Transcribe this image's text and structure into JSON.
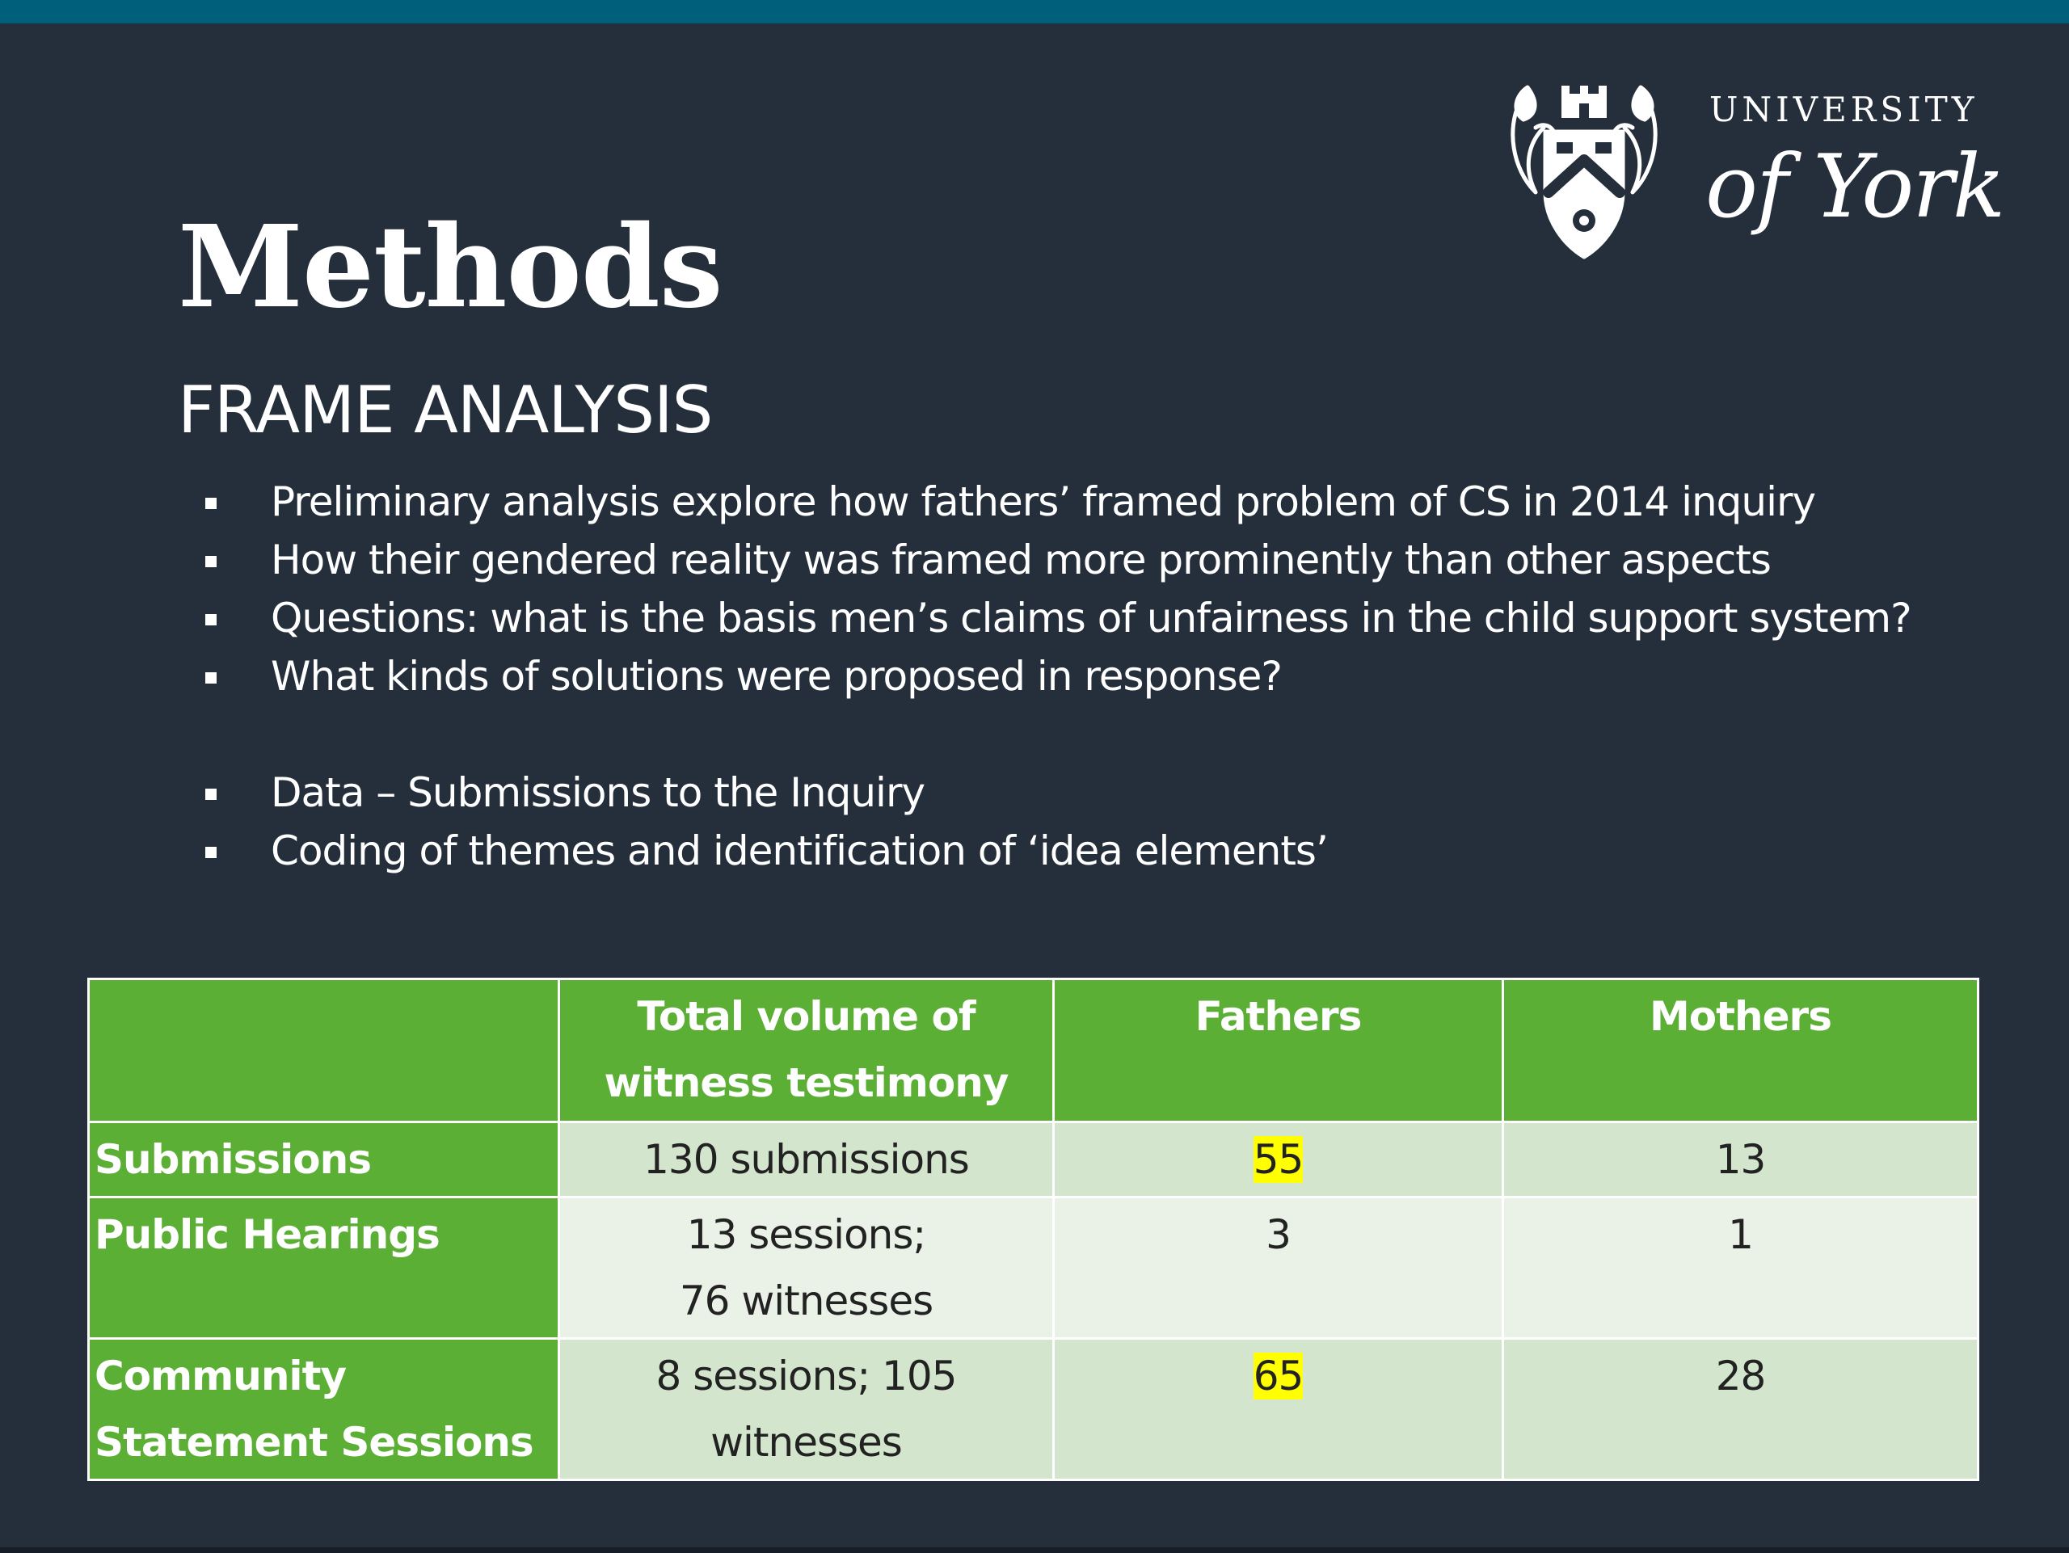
{
  "slide": {
    "title": "Methods",
    "subtitle": "FRAME ANALYSIS"
  },
  "logo": {
    "line1": "UNIVERSITY",
    "line2": "of York",
    "icon": "university-crest-icon"
  },
  "bullets": [
    "Preliminary analysis explore how fathers’ framed problem of CS in 2014 inquiry",
    "How their gendered reality was framed more prominently than other aspects",
    "Questions: what is the basis men’s claims of unfairness in the child support system?",
    "What kinds of solutions were proposed in response?",
    "Data – Submissions to the Inquiry",
    "Coding of themes and identification of ‘idea elements’"
  ],
  "table": {
    "headers": [
      "",
      "Total volume of witness testimony",
      "Fathers",
      "Mothers"
    ],
    "rows": [
      {
        "label": "Submissions",
        "total": [
          "130 submissions"
        ],
        "fathers": "55",
        "mothers": "13"
      },
      {
        "label": "Public Hearings",
        "total": [
          "13 sessions;",
          "76 witnesses"
        ],
        "fathers": "3",
        "mothers": "1"
      },
      {
        "label": "Community Statement Sessions",
        "total": [
          "8 sessions; 105",
          "witnesses"
        ],
        "fathers": "65",
        "mothers": "28"
      }
    ],
    "highlight_color": "#ffff00",
    "header_color": "#5baf35"
  },
  "colors": {
    "background": "#252f3b",
    "top_bar": "#005f7a",
    "text": "#ffffff"
  }
}
